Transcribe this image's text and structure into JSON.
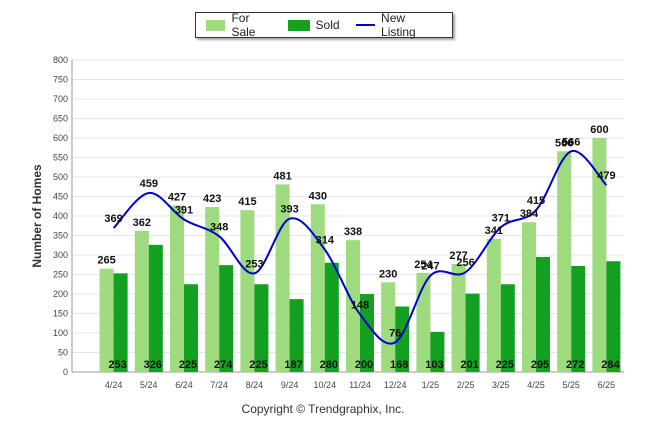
{
  "chart_data": {
    "type": "bar",
    "title": "",
    "xlabel": "",
    "ylabel": "Number of Homes",
    "ylim": [
      0,
      800
    ],
    "yticks": [
      0,
      50,
      100,
      150,
      200,
      250,
      300,
      350,
      400,
      450,
      500,
      550,
      600,
      650,
      700,
      750,
      800
    ],
    "grid": true,
    "legend_position": "top-center",
    "categories": [
      "4/24",
      "5/24",
      "6/24",
      "7/24",
      "8/24",
      "9/24",
      "10/24",
      "11/24",
      "12/24",
      "1/25",
      "2/25",
      "3/25",
      "4/25",
      "5/25",
      "6/25"
    ],
    "series": [
      {
        "name": "For Sale",
        "kind": "bar",
        "color": "#9ddb7e",
        "values": [
          265,
          362,
          427,
          423,
          415,
          481,
          430,
          338,
          230,
          254,
          277,
          341,
          384,
          566,
          600
        ]
      },
      {
        "name": "Sold",
        "kind": "bar",
        "color": "#14a021",
        "values": [
          253,
          326,
          225,
          274,
          225,
          187,
          280,
          200,
          168,
          103,
          201,
          225,
          295,
          272,
          284
        ]
      },
      {
        "name": "New Listing",
        "kind": "line",
        "color": "#0000cc",
        "values": [
          369,
          459,
          391,
          348,
          253,
          393,
          314,
          148,
          76,
          247,
          256,
          371,
          415,
          566,
          479
        ]
      }
    ],
    "copyright": "Copyright © Trendgraphix, Inc."
  }
}
